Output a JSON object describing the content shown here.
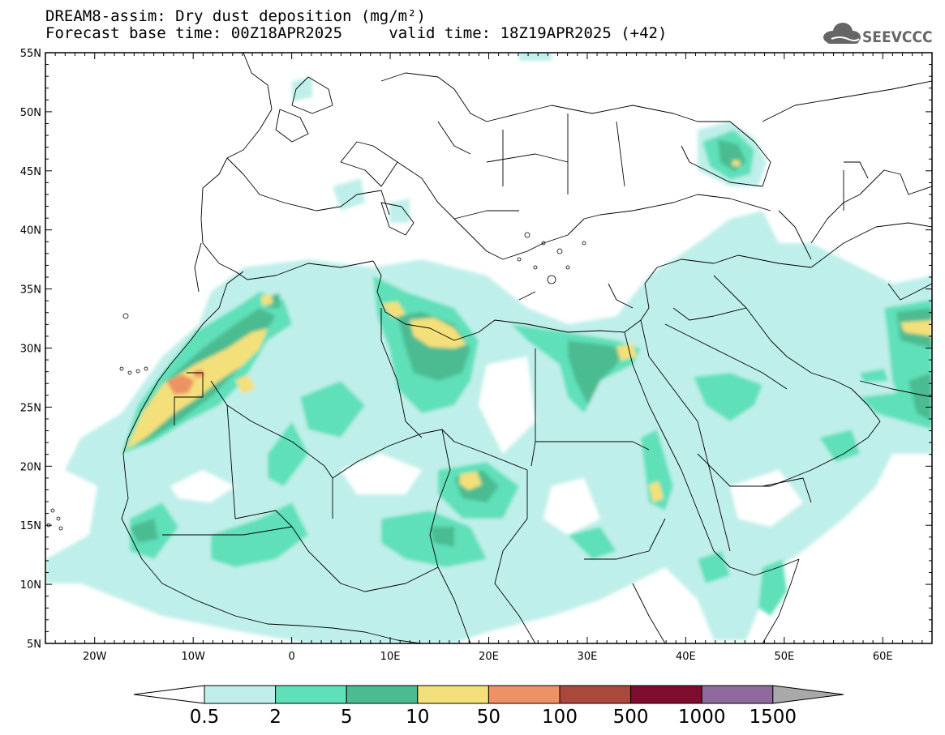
{
  "title": {
    "line1": "DREAM8-assim: Dry dust deposition (mg/m²)",
    "line2_left": "Forecast base time: 00Z18APR2025",
    "line2_right": "valid time: 18Z19APR2025 (+42)"
  },
  "logo": {
    "text": "SEEVCCC",
    "icon": "cloud-icon",
    "color": "#666666"
  },
  "map": {
    "lon_range": [
      -25,
      65
    ],
    "lat_range": [
      5,
      55
    ],
    "lat_ticks": [
      "55N",
      "50N",
      "45N",
      "40N",
      "35N",
      "30N",
      "25N",
      "20N",
      "15N",
      "10N",
      "5N"
    ],
    "lon_ticks": [
      "20W",
      "10W",
      "0",
      "10E",
      "20E",
      "30E",
      "40E",
      "50E",
      "60E"
    ],
    "lat_values": [
      55,
      50,
      45,
      40,
      35,
      30,
      25,
      20,
      15,
      10,
      5
    ],
    "lon_values": [
      -20,
      -10,
      0,
      10,
      20,
      30,
      40,
      50,
      60
    ]
  },
  "colorbar": {
    "labels": [
      "0.5",
      "2",
      "5",
      "10",
      "50",
      "100",
      "500",
      "1000",
      "1500"
    ],
    "colors": [
      "#bfefea",
      "#5fe0b9",
      "#4cbb91",
      "#f4e07a",
      "#ec9264",
      "#a9483b",
      "#7e0d2f",
      "#8e6a9e"
    ],
    "under_color": "#ffffff",
    "over_color": "#a9a9a9"
  }
}
